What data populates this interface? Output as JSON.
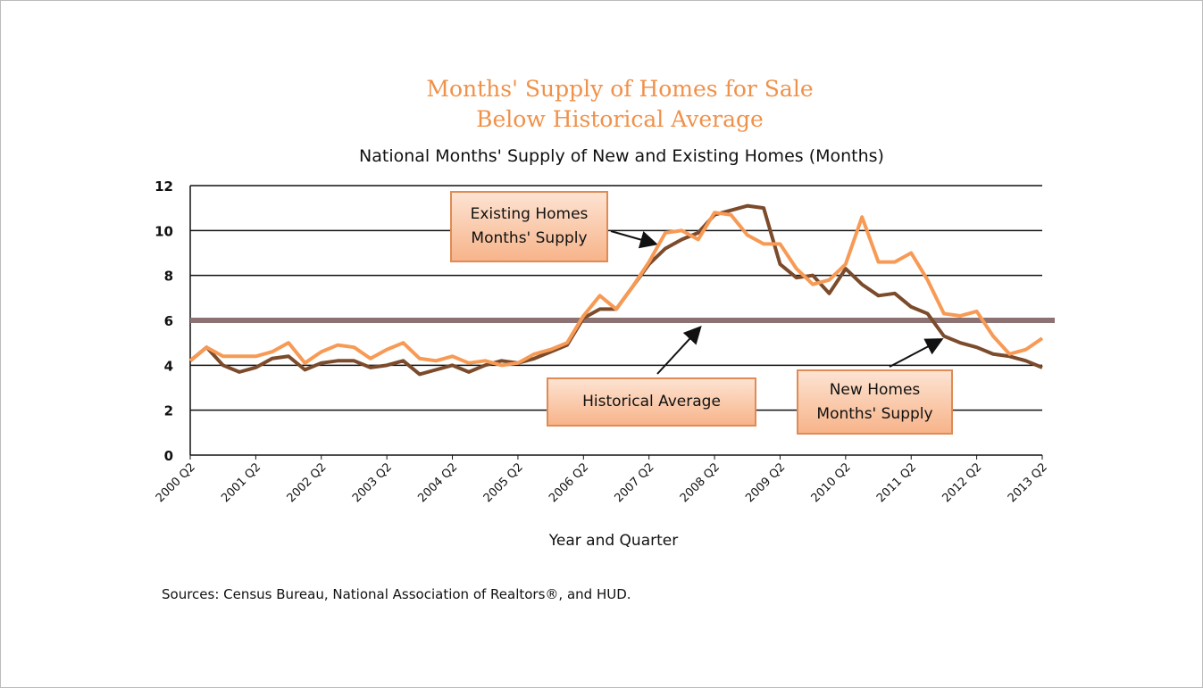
{
  "chart_data": {
    "type": "line",
    "title_lines": [
      "Months' Supply of Homes for Sale",
      "Below Historical Average"
    ],
    "subtitle": "National Months' Supply of New and Existing Homes (Months)",
    "x_label": "Year and Quarter",
    "source": "Sources: Census Bureau, National Association of Realtors®, and HUD.",
    "categories": [
      "2000 Q2",
      null,
      null,
      null,
      "2001 Q2",
      null,
      null,
      null,
      "2002 Q2",
      null,
      null,
      null,
      "2003 Q2",
      null,
      null,
      null,
      "2004 Q2",
      null,
      null,
      null,
      "2005 Q2",
      null,
      null,
      null,
      "2006 Q2",
      null,
      null,
      null,
      "2007 Q2",
      null,
      null,
      null,
      "2008 Q2",
      null,
      null,
      null,
      "2009 Q2",
      null,
      null,
      null,
      "2010 Q2",
      null,
      null,
      null,
      "2011 Q2",
      null,
      null,
      null,
      "2012 Q2",
      null,
      null,
      null,
      "2013 Q2"
    ],
    "series": [
      {
        "name": "New Homes Months' Supply",
        "color": "#7b4b2c",
        "values": [
          4.2,
          4.8,
          4.0,
          3.7,
          3.9,
          4.3,
          4.4,
          3.8,
          4.1,
          4.2,
          4.2,
          3.9,
          4.0,
          4.2,
          3.6,
          3.8,
          4.0,
          3.7,
          4.0,
          4.2,
          4.1,
          4.3,
          4.6,
          4.9,
          6.1,
          6.5,
          6.5,
          7.5,
          8.5,
          9.2,
          9.6,
          9.9,
          10.7,
          10.9,
          11.1,
          11.0,
          8.5,
          7.9,
          8.0,
          7.2,
          8.3,
          7.6,
          7.1,
          7.2,
          6.6,
          6.3,
          5.3,
          5.0,
          4.8,
          4.5,
          4.4,
          4.2,
          3.9
        ]
      },
      {
        "name": "Existing Homes Months' Supply",
        "color": "#f79a55",
        "values": [
          4.2,
          4.8,
          4.4,
          4.4,
          4.4,
          4.6,
          5.0,
          4.1,
          4.6,
          4.9,
          4.8,
          4.3,
          4.7,
          5.0,
          4.3,
          4.2,
          4.4,
          4.1,
          4.2,
          4.0,
          4.1,
          4.5,
          4.7,
          5.0,
          6.2,
          7.1,
          6.5,
          7.5,
          8.6,
          9.9,
          10.0,
          9.6,
          10.8,
          10.7,
          9.8,
          9.4,
          9.4,
          8.3,
          7.6,
          7.8,
          8.5,
          10.6,
          8.6,
          8.6,
          9.0,
          7.8,
          6.3,
          6.2,
          6.4,
          5.3,
          4.5,
          4.7,
          5.2
        ]
      }
    ],
    "reference_line": {
      "name": "Historical Average",
      "value": 6,
      "color": "#8c7272"
    },
    "ylim": [
      0,
      12
    ],
    "yticks": [
      0,
      2,
      4,
      6,
      8,
      10,
      12
    ],
    "grid": true
  }
}
